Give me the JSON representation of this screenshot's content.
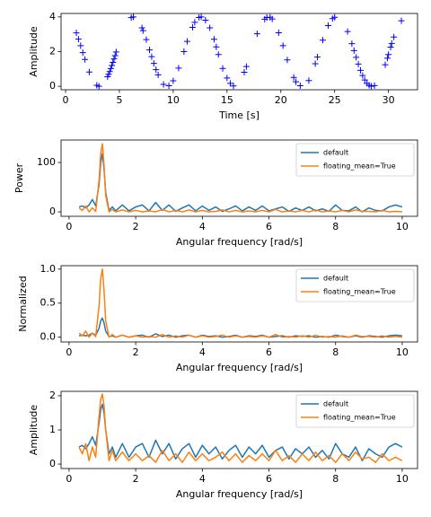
{
  "chart_data": [
    {
      "type": "scatter",
      "xlabel": "Time [s]",
      "ylabel": "Amplitude",
      "color": "#0000ff",
      "marker": "+",
      "x": [
        1.0,
        1.2,
        1.4,
        1.6,
        1.8,
        2.2,
        2.9,
        3.1,
        3.9,
        4.0,
        4.1,
        4.2,
        4.3,
        4.4,
        4.5,
        4.6,
        4.7,
        6.1,
        6.3,
        7.1,
        7.2,
        7.5,
        7.8,
        8.0,
        8.2,
        8.4,
        8.6,
        9.1,
        9.6,
        10.0,
        10.5,
        11.0,
        11.3,
        11.8,
        12.0,
        12.4,
        12.6,
        13.0,
        13.4,
        13.8,
        14.0,
        14.2,
        14.6,
        15.0,
        15.3,
        15.6,
        16.6,
        16.8,
        17.8,
        18.5,
        18.7,
        19.0,
        19.2,
        19.8,
        20.2,
        20.6,
        21.2,
        21.4,
        21.8,
        22.6,
        23.2,
        23.4,
        23.9,
        24.4,
        24.8,
        25.0,
        26.2,
        26.6,
        26.8,
        27.0,
        27.2,
        27.4,
        27.6,
        27.8,
        28.0,
        28.2,
        28.4,
        28.7,
        29.7,
        29.9,
        30.0,
        30.2,
        30.3,
        30.5,
        31.2
      ],
      "values": [
        3.08,
        2.72,
        2.34,
        1.94,
        1.55,
        0.82,
        0.06,
        0.0,
        0.55,
        0.69,
        0.85,
        1.02,
        1.2,
        1.38,
        1.58,
        1.77,
        1.98,
        3.96,
        4.0,
        3.37,
        3.21,
        2.69,
        2.1,
        1.71,
        1.32,
        0.96,
        0.66,
        0.11,
        0.03,
        0.32,
        1.05,
        2.0,
        2.59,
        3.4,
        3.69,
        3.97,
        4.0,
        3.81,
        3.37,
        2.71,
        2.27,
        1.83,
        1.03,
        0.48,
        0.17,
        0.02,
        0.81,
        1.14,
        3.03,
        3.87,
        3.97,
        3.98,
        3.88,
        3.09,
        2.34,
        1.52,
        0.51,
        0.26,
        0.03,
        0.33,
        1.3,
        1.68,
        2.66,
        3.5,
        3.9,
        3.98,
        3.16,
        2.46,
        2.06,
        1.67,
        1.28,
        0.92,
        0.62,
        0.36,
        0.17,
        0.06,
        0.0,
        0.04,
        1.24,
        1.62,
        1.83,
        2.26,
        2.47,
        2.84,
        3.78
      ],
      "xlim": [
        -0.42,
        32.7
      ],
      "xticks": [
        0,
        5,
        10,
        15,
        20,
        25,
        30
      ],
      "ylim": [
        -0.2,
        4.2
      ],
      "yticks": [
        0,
        2,
        4
      ]
    },
    {
      "type": "line",
      "xlabel": "Angular frequency [rad/s]",
      "ylabel": "Power",
      "legend": "upper right",
      "x": [
        0.3,
        0.4,
        0.5,
        0.6,
        0.7,
        0.8,
        0.9,
        0.95,
        1.0,
        1.05,
        1.1,
        1.2,
        1.3,
        1.4,
        1.6,
        1.8,
        2.0,
        2.2,
        2.4,
        2.6,
        2.8,
        3.0,
        3.2,
        3.4,
        3.6,
        3.8,
        4.0,
        4.2,
        4.4,
        4.6,
        4.8,
        5.0,
        5.2,
        5.4,
        5.6,
        5.8,
        6.0,
        6.2,
        6.4,
        6.6,
        6.8,
        7.0,
        7.2,
        7.4,
        7.6,
        7.8,
        8.0,
        8.2,
        8.4,
        8.6,
        8.8,
        9.0,
        9.2,
        9.4,
        9.6,
        9.8,
        10.0
      ],
      "series": [
        {
          "name": "default",
          "color": "#1f77b4",
          "values": [
            10,
            12,
            8,
            14,
            25,
            12,
            55,
            99,
            118,
            87,
            39,
            3,
            10,
            2,
            14,
            2,
            10,
            14,
            2,
            19,
            3,
            14,
            1,
            8,
            14,
            2,
            12,
            3,
            10,
            1,
            6,
            12,
            2,
            10,
            3,
            12,
            2,
            6,
            10,
            1,
            8,
            3,
            10,
            2,
            6,
            1,
            14,
            3,
            2,
            10,
            0,
            8,
            3,
            2,
            10,
            14,
            10
          ]
        },
        {
          "name": "floating_mean=True",
          "color": "#ff7f0e",
          "values": [
            8,
            3,
            12,
            0,
            8,
            1,
            64,
            118,
            138,
            95,
            33,
            0,
            5,
            0,
            4,
            0,
            3,
            0,
            2,
            0,
            5,
            0,
            3,
            0,
            4,
            0,
            3,
            0,
            1,
            4,
            0,
            3,
            0,
            2,
            0,
            3,
            0,
            5,
            0,
            2,
            0,
            3,
            0,
            4,
            0,
            2,
            0,
            3,
            0,
            4,
            1,
            1,
            0,
            3,
            0,
            1,
            0
          ]
        }
      ],
      "xlim": [
        -0.24,
        10.46
      ],
      "xticks": [
        0,
        2,
        4,
        6,
        8,
        10
      ],
      "ylim": [
        -9,
        145.5
      ],
      "yticks": [
        0,
        100
      ]
    },
    {
      "type": "line",
      "xlabel": "Angular frequency [rad/s]",
      "ylabel": "Normalized",
      "legend": "upper right",
      "x": [
        0.3,
        0.4,
        0.5,
        0.6,
        0.7,
        0.8,
        0.9,
        0.95,
        1.0,
        1.05,
        1.1,
        1.2,
        1.3,
        1.4,
        1.6,
        1.8,
        2.0,
        2.2,
        2.4,
        2.6,
        2.8,
        3.0,
        3.2,
        3.4,
        3.6,
        3.8,
        4.0,
        4.2,
        4.4,
        4.6,
        4.8,
        5.0,
        5.2,
        5.4,
        5.6,
        5.8,
        6.0,
        6.2,
        6.4,
        6.6,
        6.8,
        7.0,
        7.2,
        7.4,
        7.6,
        7.8,
        8.0,
        8.2,
        8.4,
        8.6,
        8.8,
        9.0,
        9.2,
        9.4,
        9.6,
        9.8,
        10.0
      ],
      "series": [
        {
          "name": "default",
          "color": "#1f77b4",
          "values": [
            0.02,
            0.03,
            0.02,
            0.03,
            0.06,
            0.03,
            0.13,
            0.24,
            0.28,
            0.21,
            0.09,
            0.01,
            0.02,
            0,
            0.03,
            0,
            0.02,
            0.03,
            0,
            0.05,
            0.01,
            0.03,
            0,
            0.02,
            0.03,
            0,
            0.03,
            0.01,
            0.02,
            0,
            0.01,
            0.03,
            0,
            0.02,
            0.01,
            0.03,
            0,
            0.01,
            0.02,
            0,
            0.02,
            0.01,
            0.02,
            0,
            0.01,
            0,
            0.03,
            0.01,
            0,
            0.02,
            0,
            0.02,
            0.01,
            0,
            0.02,
            0.03,
            0.02
          ]
        },
        {
          "name": "floating_mean=True",
          "color": "#ff7f0e",
          "values": [
            0.06,
            0.02,
            0.09,
            0,
            0.06,
            0.01,
            0.46,
            0.86,
            1.0,
            0.69,
            0.24,
            0,
            0.04,
            0,
            0.03,
            0,
            0.02,
            0,
            0.01,
            0,
            0.04,
            0,
            0.02,
            0,
            0.03,
            0,
            0.02,
            0,
            0.01,
            0.03,
            0,
            0.02,
            0,
            0.01,
            0,
            0.02,
            0,
            0.04,
            0,
            0.01,
            0,
            0.02,
            0,
            0.03,
            0,
            0.01,
            0,
            0.02,
            0,
            0.03,
            0.01,
            0.01,
            0,
            0.02,
            0,
            0.01,
            0
          ]
        }
      ],
      "xlim": [
        -0.24,
        10.46
      ],
      "xticks": [
        0,
        2,
        4,
        6,
        8,
        10
      ],
      "ylim": [
        -0.07,
        1.05
      ],
      "yticks": [
        {
          "value": 0,
          "label": "0.0"
        },
        {
          "value": 0.5,
          "label": "0.5"
        },
        {
          "value": 1,
          "label": "1.0"
        }
      ]
    },
    {
      "type": "line",
      "xlabel": "Angular frequency [rad/s]",
      "ylabel": "Amplitude",
      "legend": "upper right",
      "x": [
        0.3,
        0.4,
        0.5,
        0.6,
        0.7,
        0.8,
        0.9,
        0.95,
        1.0,
        1.05,
        1.1,
        1.2,
        1.3,
        1.4,
        1.6,
        1.8,
        2.0,
        2.2,
        2.4,
        2.6,
        2.8,
        3.0,
        3.2,
        3.4,
        3.6,
        3.8,
        4.0,
        4.2,
        4.4,
        4.6,
        4.8,
        5.0,
        5.2,
        5.4,
        5.6,
        5.8,
        6.0,
        6.2,
        6.4,
        6.6,
        6.8,
        7.0,
        7.2,
        7.4,
        7.6,
        7.8,
        8.0,
        8.2,
        8.4,
        8.6,
        8.8,
        9.0,
        9.2,
        9.4,
        9.6,
        9.8,
        10.0
      ],
      "series": [
        {
          "name": "default",
          "color": "#1f77b4",
          "values": [
            0.5,
            0.55,
            0.45,
            0.6,
            0.8,
            0.55,
            1.2,
            1.6,
            1.75,
            1.5,
            1.0,
            0.3,
            0.5,
            0.2,
            0.6,
            0.2,
            0.5,
            0.6,
            0.2,
            0.7,
            0.3,
            0.6,
            0.15,
            0.45,
            0.6,
            0.2,
            0.55,
            0.3,
            0.5,
            0.15,
            0.4,
            0.55,
            0.2,
            0.5,
            0.3,
            0.55,
            0.2,
            0.4,
            0.5,
            0.15,
            0.45,
            0.3,
            0.5,
            0.2,
            0.4,
            0.15,
            0.6,
            0.3,
            0.2,
            0.5,
            0.1,
            0.45,
            0.3,
            0.2,
            0.5,
            0.6,
            0.5
          ]
        },
        {
          "name": "floating_mean=True",
          "color": "#ff7f0e",
          "values": [
            0.5,
            0.3,
            0.6,
            0.1,
            0.5,
            0.2,
            1.4,
            1.9,
            2.05,
            1.7,
            1.0,
            0.1,
            0.4,
            0.1,
            0.35,
            0.1,
            0.3,
            0.1,
            0.25,
            0.05,
            0.4,
            0.1,
            0.3,
            0.05,
            0.35,
            0.1,
            0.3,
            0.1,
            0.2,
            0.35,
            0.1,
            0.3,
            0.05,
            0.25,
            0.1,
            0.3,
            0.1,
            0.4,
            0.1,
            0.25,
            0.05,
            0.3,
            0.1,
            0.35,
            0.1,
            0.25,
            0.05,
            0.3,
            0.1,
            0.35,
            0.15,
            0.2,
            0.05,
            0.3,
            0.1,
            0.2,
            0.1
          ]
        }
      ],
      "xlim": [
        -0.24,
        10.46
      ],
      "xticks": [
        0,
        2,
        4,
        6,
        8,
        10
      ],
      "ylim": [
        -0.13,
        2.13
      ],
      "yticks": [
        0,
        1,
        2
      ]
    }
  ]
}
